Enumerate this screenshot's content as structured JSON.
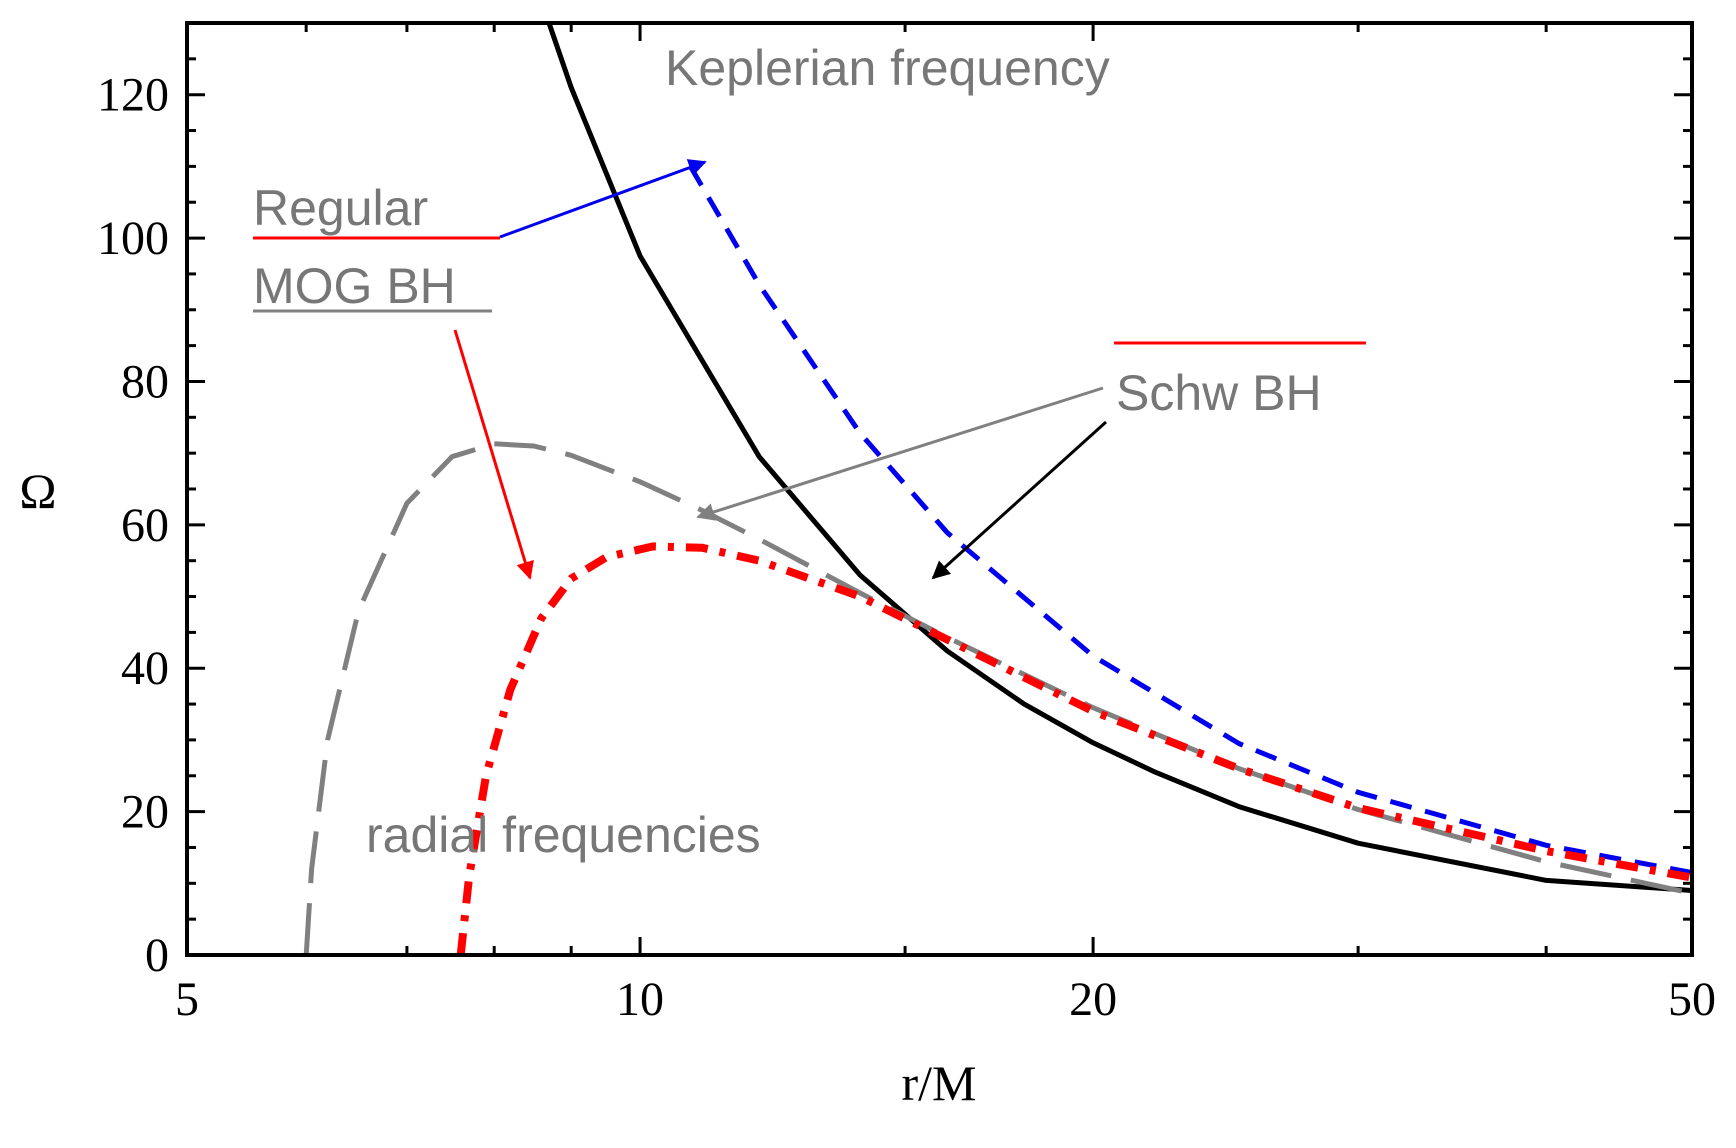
{
  "chart_data": {
    "type": "line",
    "x_scale": "log",
    "xlim": [
      5,
      50
    ],
    "ylim": [
      0,
      130
    ],
    "xlabel": "r/M",
    "ylabel": "Ω",
    "x_ticks": [
      5,
      10,
      20,
      50
    ],
    "x_tick_labels": [
      "5",
      "10",
      "20",
      "50"
    ],
    "y_ticks": [
      0,
      20,
      40,
      60,
      80,
      100,
      120
    ],
    "y_tick_labels": [
      "0",
      "20",
      "40",
      "60",
      "80",
      "100",
      "120"
    ],
    "series": [
      {
        "name": "Keplerian frequency, Regular MOG BH",
        "style": "short-dash",
        "color": "#0000ee",
        "x": [
          10.8,
          12,
          14,
          16,
          20,
          25,
          30,
          40,
          50
        ],
        "y": [
          110,
          93.5,
          72.8,
          58.9,
          41.7,
          29.5,
          22.7,
          15.3,
          11.5
        ]
      },
      {
        "name": "Keplerian frequency, Schw BH",
        "style": "solid",
        "color": "#000000",
        "x": [
          8.7,
          9,
          10,
          12,
          14,
          16,
          18,
          20,
          22,
          25,
          30,
          40,
          50
        ],
        "y": [
          130,
          121,
          97.5,
          69.5,
          53.0,
          42.4,
          35.0,
          29.6,
          25.5,
          20.7,
          15.6,
          10.4,
          9.0
        ]
      },
      {
        "name": "radial frequency, Schw BH",
        "style": "long-dash",
        "color": "#808080",
        "x": [
          6.0,
          6.05,
          6.2,
          6.5,
          7.0,
          7.5,
          8.0,
          8.5,
          9,
          10,
          11,
          12,
          14,
          16,
          20,
          25,
          30,
          40,
          50
        ],
        "y": [
          0,
          12,
          30,
          48,
          63,
          69.5,
          71.3,
          71,
          69.7,
          66.0,
          62.0,
          58.0,
          50.5,
          44.3,
          34.5,
          26.0,
          20.3,
          13.0,
          8.6
        ]
      },
      {
        "name": "radial frequency, Regular MOG BH",
        "style": "dash-dot",
        "color": "#ff0000",
        "x": [
          7.6,
          7.7,
          7.9,
          8.2,
          8.6,
          9.0,
          9.5,
          10.2,
          11,
          12,
          14,
          16,
          20,
          25,
          30,
          40,
          50
        ],
        "y": [
          0,
          11,
          25,
          37,
          47,
          52.5,
          55.5,
          57.0,
          56.8,
          55.0,
          50.0,
          44.0,
          34.0,
          26.0,
          20.5,
          14.5,
          10.8
        ]
      }
    ],
    "annotations": [
      "Keplerian frequency",
      "Regular",
      "MOG BH",
      "Schw BH",
      "radial frequencies"
    ]
  },
  "labels": {
    "keplerian": "Keplerian frequency",
    "regular": "Regular",
    "mog_bh": "MOG BH",
    "schw_bh": "Schw BH",
    "radial": "radial frequencies"
  }
}
